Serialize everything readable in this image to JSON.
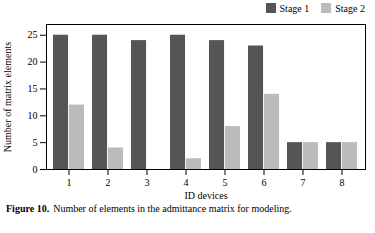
{
  "chart_data": {
    "type": "bar",
    "categories": [
      1,
      2,
      3,
      4,
      5,
      6,
      7,
      8
    ],
    "series": [
      {
        "name": "Stage 1",
        "color": "#555555",
        "values": [
          25,
          25,
          24,
          25,
          24,
          23,
          5,
          5
        ]
      },
      {
        "name": "Stage 2",
        "color": "#bbbbbb",
        "values": [
          12,
          4,
          0,
          2,
          8,
          14,
          5,
          5
        ]
      }
    ],
    "xlabel": "ID devices",
    "ylabel": "Number of matrix elements",
    "ylim": [
      0,
      27
    ],
    "yticks": [
      0,
      5,
      10,
      15,
      20,
      25
    ],
    "legend": "upper right",
    "grid": false,
    "caption": {
      "label": "Figure 10.",
      "text": "Number of elements in the admittance matrix for modeling."
    }
  }
}
